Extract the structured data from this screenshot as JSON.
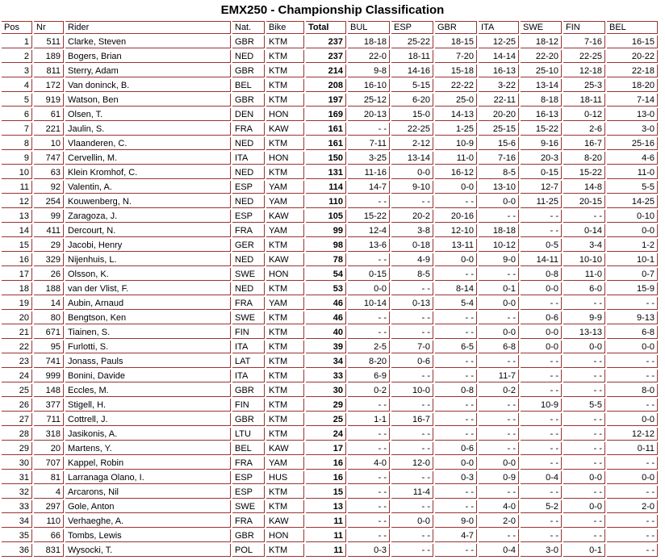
{
  "title": "EMX250 - Championship Classification",
  "table": {
    "empty_score": "- -",
    "columns": [
      {
        "key": "pos",
        "label": "Pos"
      },
      {
        "key": "nr",
        "label": "Nr"
      },
      {
        "key": "rider",
        "label": "Rider"
      },
      {
        "key": "nat",
        "label": "Nat."
      },
      {
        "key": "bike",
        "label": "Bike"
      },
      {
        "key": "total",
        "label": "Total"
      },
      {
        "key": "bul",
        "label": "BUL"
      },
      {
        "key": "esp",
        "label": "ESP"
      },
      {
        "key": "gbr",
        "label": "GBR"
      },
      {
        "key": "ita",
        "label": "ITA"
      },
      {
        "key": "swe",
        "label": "SWE"
      },
      {
        "key": "fin",
        "label": "FIN"
      },
      {
        "key": "bel",
        "label": "BEL"
      }
    ],
    "rows": [
      [
        1,
        511,
        "Clarke, Steven",
        "GBR",
        "KTM",
        237,
        "18-18",
        "25-22",
        "18-15",
        "12-25",
        "18-12",
        "7-16",
        "16-15"
      ],
      [
        2,
        189,
        "Bogers, Brian",
        "NED",
        "KTM",
        237,
        "22-0",
        "18-11",
        "7-20",
        "14-14",
        "22-20",
        "22-25",
        "20-22"
      ],
      [
        3,
        811,
        "Sterry, Adam",
        "GBR",
        "KTM",
        214,
        "9-8",
        "14-16",
        "15-18",
        "16-13",
        "25-10",
        "12-18",
        "22-18"
      ],
      [
        4,
        172,
        "Van doninck, B.",
        "BEL",
        "KTM",
        208,
        "16-10",
        "5-15",
        "22-22",
        "3-22",
        "13-14",
        "25-3",
        "18-20"
      ],
      [
        5,
        919,
        "Watson, Ben",
        "GBR",
        "KTM",
        197,
        "25-12",
        "6-20",
        "25-0",
        "22-11",
        "8-18",
        "18-11",
        "7-14"
      ],
      [
        6,
        61,
        "Olsen, T.",
        "DEN",
        "HON",
        169,
        "20-13",
        "15-0",
        "14-13",
        "20-20",
        "16-13",
        "0-12",
        "13-0"
      ],
      [
        7,
        221,
        "Jaulin, S.",
        "FRA",
        "KAW",
        161,
        "- -",
        "22-25",
        "1-25",
        "25-15",
        "15-22",
        "2-6",
        "3-0"
      ],
      [
        8,
        10,
        "Vlaanderen, C.",
        "NED",
        "KTM",
        161,
        "7-11",
        "2-12",
        "10-9",
        "15-6",
        "9-16",
        "16-7",
        "25-16"
      ],
      [
        9,
        747,
        "Cervellin, M.",
        "ITA",
        "HON",
        150,
        "3-25",
        "13-14",
        "11-0",
        "7-16",
        "20-3",
        "8-20",
        "4-6"
      ],
      [
        10,
        63,
        "Klein Kromhof, C.",
        "NED",
        "KTM",
        131,
        "11-16",
        "0-0",
        "16-12",
        "8-5",
        "0-15",
        "15-22",
        "11-0"
      ],
      [
        11,
        92,
        "Valentin, A.",
        "ESP",
        "YAM",
        114,
        "14-7",
        "9-10",
        "0-0",
        "13-10",
        "12-7",
        "14-8",
        "5-5"
      ],
      [
        12,
        254,
        "Kouwenberg, N.",
        "NED",
        "YAM",
        110,
        "- -",
        "- -",
        "- -",
        "0-0",
        "11-25",
        "20-15",
        "14-25"
      ],
      [
        13,
        99,
        "Zaragoza, J.",
        "ESP",
        "KAW",
        105,
        "15-22",
        "20-2",
        "20-16",
        "- -",
        "- -",
        "- -",
        "0-10"
      ],
      [
        14,
        411,
        "Dercourt, N.",
        "FRA",
        "YAM",
        99,
        "12-4",
        "3-8",
        "12-10",
        "18-18",
        "- -",
        "0-14",
        "0-0"
      ],
      [
        15,
        29,
        "Jacobi, Henry",
        "GER",
        "KTM",
        98,
        "13-6",
        "0-18",
        "13-11",
        "10-12",
        "0-5",
        "3-4",
        "1-2"
      ],
      [
        16,
        329,
        "Nijenhuis, L.",
        "NED",
        "KAW",
        78,
        "- -",
        "4-9",
        "0-0",
        "9-0",
        "14-11",
        "10-10",
        "10-1"
      ],
      [
        17,
        26,
        "Olsson, K.",
        "SWE",
        "HON",
        54,
        "0-15",
        "8-5",
        "- -",
        "- -",
        "0-8",
        "11-0",
        "0-7"
      ],
      [
        18,
        188,
        "van der Vlist, F.",
        "NED",
        "KTM",
        53,
        "0-0",
        "- -",
        "8-14",
        "0-1",
        "0-0",
        "6-0",
        "15-9"
      ],
      [
        19,
        14,
        "Aubin, Arnaud",
        "FRA",
        "YAM",
        46,
        "10-14",
        "0-13",
        "5-4",
        "0-0",
        "- -",
        "- -",
        "- -"
      ],
      [
        20,
        80,
        "Bengtson, Ken",
        "SWE",
        "KTM",
        46,
        "- -",
        "- -",
        "- -",
        "- -",
        "0-6",
        "9-9",
        "9-13"
      ],
      [
        21,
        671,
        "Tiainen, S.",
        "FIN",
        "KTM",
        40,
        "- -",
        "- -",
        "- -",
        "0-0",
        "0-0",
        "13-13",
        "6-8"
      ],
      [
        22,
        95,
        "Furlotti, S.",
        "ITA",
        "KTM",
        39,
        "2-5",
        "7-0",
        "6-5",
        "6-8",
        "0-0",
        "0-0",
        "0-0"
      ],
      [
        23,
        741,
        "Jonass, Pauls",
        "LAT",
        "KTM",
        34,
        "8-20",
        "0-6",
        "- -",
        "- -",
        "- -",
        "- -",
        "- -"
      ],
      [
        24,
        999,
        "Bonini, Davide",
        "ITA",
        "KTM",
        33,
        "6-9",
        "- -",
        "- -",
        "11-7",
        "- -",
        "- -",
        "- -"
      ],
      [
        25,
        148,
        "Eccles, M.",
        "GBR",
        "KTM",
        30,
        "0-2",
        "10-0",
        "0-8",
        "0-2",
        "- -",
        "- -",
        "8-0"
      ],
      [
        26,
        377,
        "Stigell, H.",
        "FIN",
        "KTM",
        29,
        "- -",
        "- -",
        "- -",
        "- -",
        "10-9",
        "5-5",
        "- -"
      ],
      [
        27,
        711,
        "Cottrell, J.",
        "GBR",
        "KTM",
        25,
        "1-1",
        "16-7",
        "- -",
        "- -",
        "- -",
        "- -",
        "0-0"
      ],
      [
        28,
        318,
        "Jasikonis, A.",
        "LTU",
        "KTM",
        24,
        "- -",
        "- -",
        "- -",
        "- -",
        "- -",
        "- -",
        "12-12"
      ],
      [
        29,
        20,
        "Martens, Y.",
        "BEL",
        "KAW",
        17,
        "- -",
        "- -",
        "0-6",
        "- -",
        "- -",
        "- -",
        "0-11"
      ],
      [
        30,
        707,
        "Kappel, Robin",
        "FRA",
        "YAM",
        16,
        "4-0",
        "12-0",
        "0-0",
        "0-0",
        "- -",
        "- -",
        "- -"
      ],
      [
        31,
        81,
        "Larranaga Olano, I.",
        "ESP",
        "HUS",
        16,
        "- -",
        "- -",
        "0-3",
        "0-9",
        "0-4",
        "0-0",
        "0-0"
      ],
      [
        32,
        4,
        "Arcarons, Nil",
        "ESP",
        "KTM",
        15,
        "- -",
        "11-4",
        "- -",
        "- -",
        "- -",
        "- -",
        "- -"
      ],
      [
        33,
        297,
        "Gole, Anton",
        "SWE",
        "KTM",
        13,
        "- -",
        "- -",
        "- -",
        "4-0",
        "5-2",
        "0-0",
        "2-0"
      ],
      [
        34,
        110,
        "Verhaeghe, A.",
        "FRA",
        "KAW",
        11,
        "- -",
        "0-0",
        "9-0",
        "2-0",
        "- -",
        "- -",
        "- -"
      ],
      [
        35,
        66,
        "Tombs, Lewis",
        "GBR",
        "HON",
        11,
        "- -",
        "- -",
        "4-7",
        "- -",
        "- -",
        "- -",
        "- -"
      ],
      [
        36,
        831,
        "Wysocki, T.",
        "POL",
        "KTM",
        11,
        "0-3",
        "- -",
        "- -",
        "0-4",
        "3-0",
        "0-1",
        "- -"
      ]
    ]
  },
  "colors": {
    "border": "#993333",
    "text": "#000000",
    "background": "#ffffff"
  }
}
